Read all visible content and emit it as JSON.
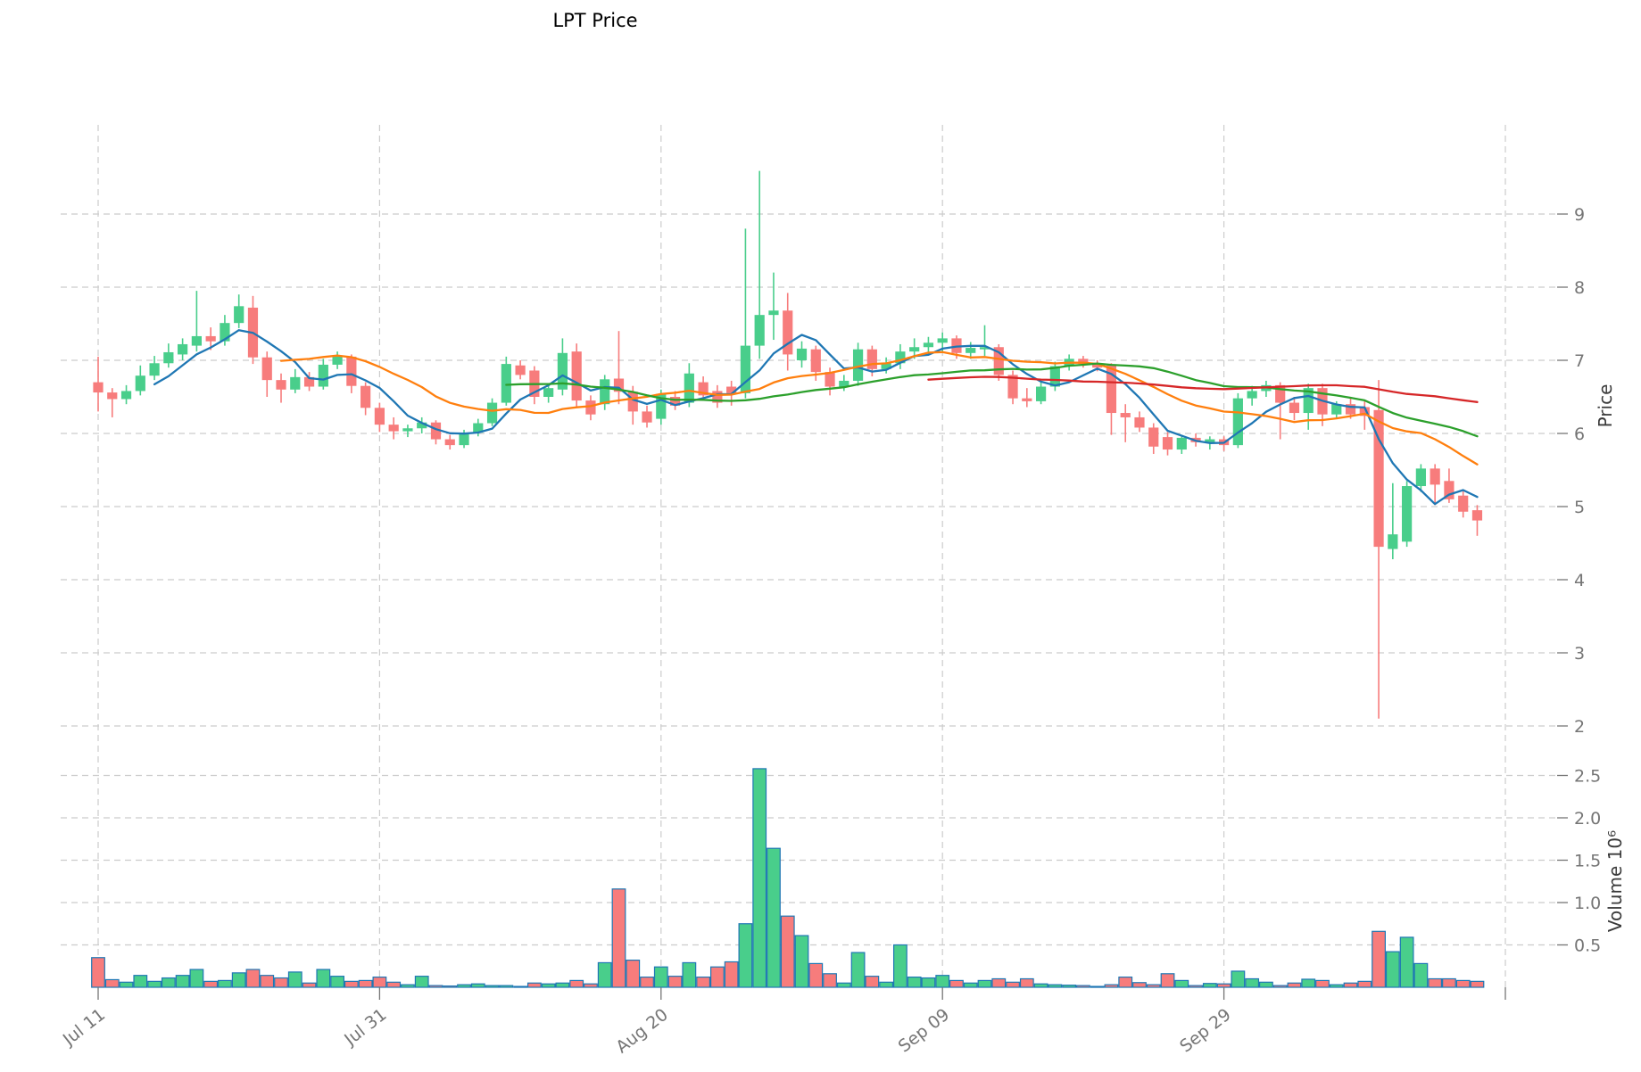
{
  "title": "LPT Price",
  "colors": {
    "up": "#49ce8b",
    "down": "#f77c7c",
    "volume_edge": "#1f77b4",
    "grid": "#cccccc",
    "tick_text": "#757575",
    "title_text": "#000000",
    "ma_colors": [
      "#1f77b4",
      "#ff7f0e",
      "#2ca02c",
      "#d62728"
    ]
  },
  "chart_data": {
    "type": "candlestick",
    "title": "LPT Price",
    "price_axis": {
      "label": "Price",
      "ticks": [
        2,
        3,
        4,
        5,
        6,
        7,
        8,
        9
      ]
    },
    "volume_axis": {
      "label": "Volume 10⁶",
      "ticks": [
        0.5,
        1.0,
        1.5,
        2.0,
        2.5
      ],
      "unit": "millions"
    },
    "x_axis": {
      "tick_days": [
        0,
        20,
        40,
        60,
        80,
        100
      ],
      "tick_labels": [
        "Jul 11",
        "Jul 31",
        "Aug 20",
        "Sep 09",
        "Sep 29",
        ""
      ],
      "num_candles": 99
    },
    "moving_averages": [
      {
        "window": 5,
        "color": "#1f77b4"
      },
      {
        "window": 14,
        "color": "#ff7f0e"
      },
      {
        "window": 30,
        "color": "#2ca02c"
      },
      {
        "window": 60,
        "color": "#d62728"
      }
    ],
    "series": {
      "open": [
        6.7,
        6.56,
        6.47,
        6.58,
        6.79,
        6.96,
        7.08,
        7.2,
        7.33,
        7.26,
        7.51,
        7.72,
        7.04,
        6.73,
        6.6,
        6.77,
        6.64,
        6.94,
        7.05,
        6.65,
        6.35,
        6.12,
        6.03,
        6.07,
        6.15,
        5.92,
        5.84,
        6.01,
        6.14,
        6.42,
        6.93,
        6.86,
        6.5,
        6.6,
        7.12,
        6.45,
        6.4,
        6.75,
        6.57,
        6.3,
        6.2,
        6.5,
        6.42,
        6.7,
        6.58,
        6.64,
        6.55,
        7.2,
        7.62,
        7.68,
        7.0,
        7.15,
        6.84,
        6.64,
        6.72,
        7.15,
        6.88,
        6.96,
        7.12,
        7.18,
        7.24,
        7.3,
        7.1,
        7.15,
        7.18,
        6.8,
        6.48,
        6.44,
        6.64,
        6.92,
        7.02,
        6.95,
        6.93,
        6.28,
        6.22,
        6.08,
        5.95,
        5.78,
        5.94,
        5.88,
        5.92,
        5.84,
        6.48,
        6.58,
        6.66,
        6.42,
        6.28,
        6.62,
        6.26,
        6.4,
        6.36,
        6.32,
        4.42,
        4.52,
        5.28,
        5.52,
        5.35,
        5.15,
        4.95
      ],
      "high": [
        7.05,
        6.62,
        6.66,
        6.93,
        7.06,
        7.23,
        7.3,
        7.95,
        7.45,
        7.62,
        7.9,
        7.88,
        7.12,
        6.82,
        6.88,
        6.84,
        7.02,
        7.12,
        7.08,
        6.7,
        6.42,
        6.22,
        6.12,
        6.22,
        6.18,
        5.98,
        6.05,
        6.2,
        6.48,
        7.05,
        7.0,
        6.92,
        6.68,
        7.3,
        7.23,
        6.52,
        6.8,
        7.4,
        6.65,
        6.38,
        6.6,
        6.58,
        6.96,
        6.78,
        6.66,
        6.72,
        8.8,
        9.59,
        8.2,
        7.92,
        7.26,
        7.2,
        6.9,
        6.8,
        7.24,
        7.2,
        7.04,
        7.22,
        7.3,
        7.32,
        7.38,
        7.34,
        7.25,
        7.48,
        7.22,
        6.86,
        6.62,
        6.72,
        6.98,
        7.08,
        7.06,
        7.0,
        6.96,
        6.4,
        6.3,
        6.14,
        6.02,
        5.98,
        6.0,
        5.96,
        5.96,
        6.55,
        6.65,
        6.72,
        6.7,
        6.5,
        6.68,
        6.68,
        6.44,
        6.5,
        6.45,
        6.73,
        5.32,
        5.35,
        5.58,
        5.58,
        5.52,
        5.22,
        5.02
      ],
      "low": [
        6.3,
        6.22,
        6.4,
        6.52,
        6.73,
        6.9,
        7.0,
        7.12,
        7.14,
        7.2,
        7.44,
        6.95,
        6.5,
        6.42,
        6.55,
        6.58,
        6.6,
        6.88,
        6.55,
        6.25,
        6.02,
        5.92,
        5.95,
        6.0,
        5.85,
        5.78,
        5.8,
        5.96,
        6.1,
        6.38,
        6.74,
        6.4,
        6.42,
        6.52,
        6.35,
        6.18,
        6.32,
        6.4,
        6.12,
        6.08,
        6.12,
        6.32,
        6.36,
        6.45,
        6.35,
        6.38,
        6.48,
        7.02,
        7.28,
        6.86,
        6.9,
        6.72,
        6.52,
        6.58,
        6.65,
        6.78,
        6.82,
        6.88,
        7.02,
        7.08,
        7.12,
        7.02,
        7.02,
        7.06,
        6.72,
        6.4,
        6.36,
        6.4,
        6.58,
        6.86,
        6.9,
        6.85,
        5.98,
        5.88,
        6.02,
        5.72,
        5.7,
        5.72,
        5.82,
        5.78,
        5.76,
        5.8,
        6.38,
        6.5,
        5.92,
        6.18,
        6.05,
        6.1,
        6.2,
        6.2,
        6.05,
        2.1,
        4.28,
        4.45,
        5.2,
        5.02,
        5.05,
        4.85,
        4.6
      ],
      "close": [
        6.56,
        6.47,
        6.58,
        6.79,
        6.96,
        7.11,
        7.22,
        7.33,
        7.26,
        7.51,
        7.74,
        7.04,
        6.73,
        6.6,
        6.77,
        6.64,
        6.94,
        7.05,
        6.65,
        6.35,
        6.12,
        6.03,
        6.07,
        6.15,
        5.92,
        5.84,
        6.01,
        6.14,
        6.42,
        6.95,
        6.8,
        6.5,
        6.62,
        7.1,
        6.45,
        6.26,
        6.74,
        6.57,
        6.3,
        6.15,
        6.54,
        6.38,
        6.82,
        6.52,
        6.42,
        6.55,
        7.2,
        7.62,
        7.68,
        7.08,
        7.16,
        6.84,
        6.64,
        6.72,
        7.15,
        6.88,
        6.96,
        7.12,
        7.18,
        7.24,
        7.3,
        7.1,
        7.17,
        7.18,
        6.8,
        6.48,
        6.44,
        6.64,
        6.92,
        7.02,
        6.95,
        6.9,
        6.28,
        6.22,
        6.08,
        5.82,
        5.78,
        5.94,
        5.88,
        5.92,
        5.84,
        6.48,
        6.58,
        6.66,
        6.42,
        6.28,
        6.62,
        6.26,
        6.4,
        6.26,
        6.24,
        4.45,
        4.62,
        5.28,
        5.52,
        5.3,
        5.1,
        4.93,
        4.81
      ],
      "volume_millions": [
        0.35,
        0.09,
        0.06,
        0.14,
        0.07,
        0.11,
        0.14,
        0.21,
        0.07,
        0.08,
        0.17,
        0.21,
        0.14,
        0.11,
        0.18,
        0.05,
        0.21,
        0.13,
        0.07,
        0.08,
        0.12,
        0.06,
        0.03,
        0.13,
        0.02,
        0.015,
        0.03,
        0.04,
        0.02,
        0.02,
        0.01,
        0.05,
        0.04,
        0.05,
        0.08,
        0.04,
        0.29,
        1.16,
        0.32,
        0.12,
        0.24,
        0.13,
        0.29,
        0.12,
        0.24,
        0.3,
        0.75,
        2.58,
        1.64,
        0.84,
        0.61,
        0.28,
        0.16,
        0.05,
        0.41,
        0.13,
        0.06,
        0.5,
        0.12,
        0.11,
        0.14,
        0.08,
        0.05,
        0.08,
        0.1,
        0.06,
        0.1,
        0.04,
        0.03,
        0.025,
        0.02,
        0.01,
        0.03,
        0.12,
        0.055,
        0.03,
        0.16,
        0.08,
        0.02,
        0.045,
        0.04,
        0.19,
        0.1,
        0.06,
        0.02,
        0.05,
        0.095,
        0.08,
        0.03,
        0.05,
        0.07,
        0.66,
        0.42,
        0.59,
        0.28,
        0.1,
        0.1,
        0.08,
        0.07
      ]
    }
  }
}
